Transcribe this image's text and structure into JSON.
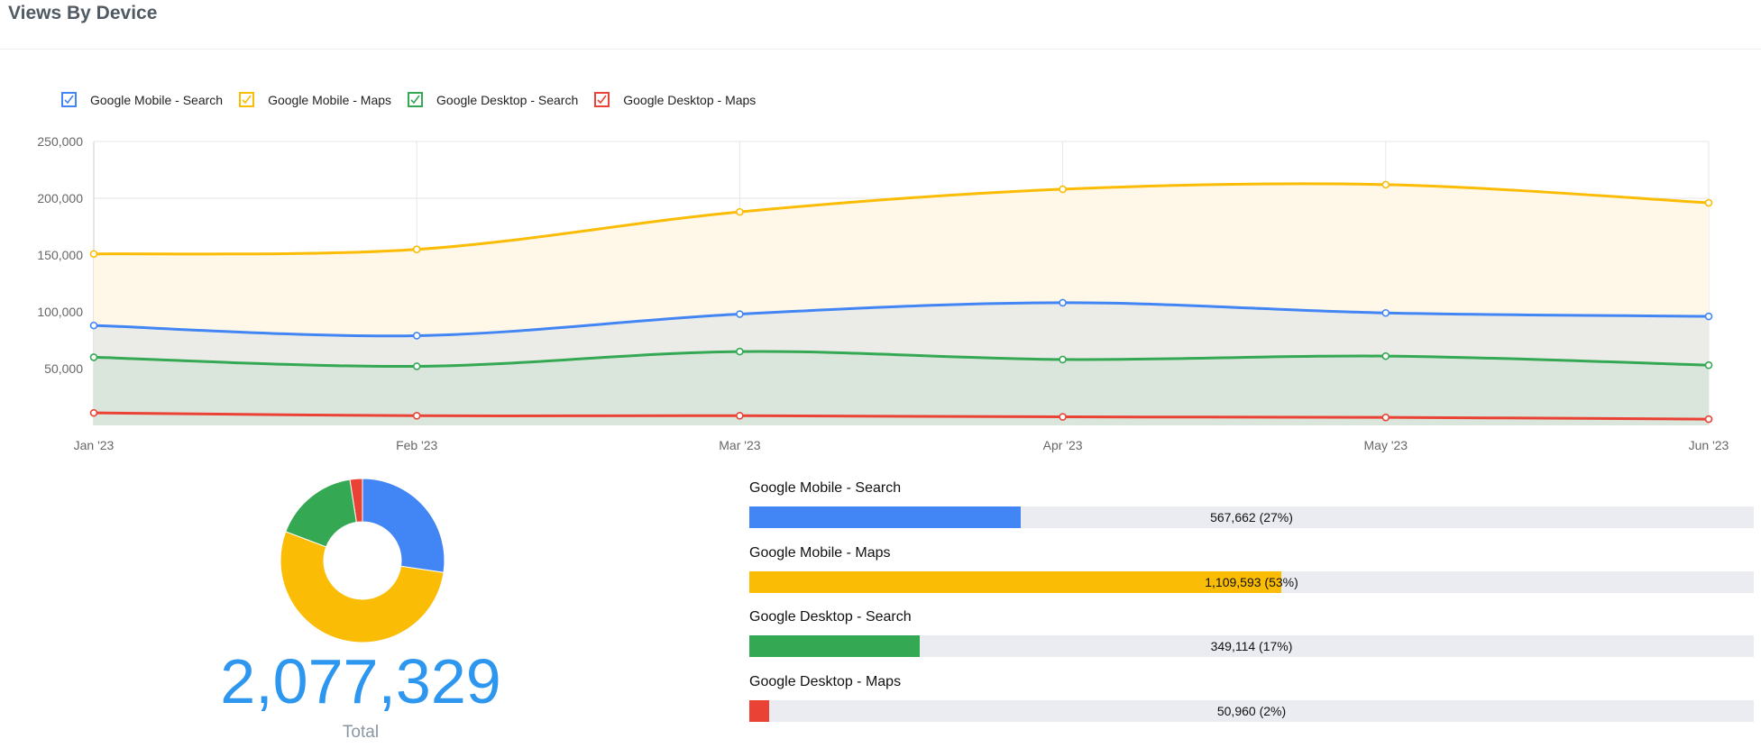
{
  "header": {
    "title": "Views By Device"
  },
  "legend": [
    {
      "label": "Google Mobile - Search",
      "color": "#4285f4"
    },
    {
      "label": "Google Mobile - Maps",
      "color": "#fbbc05"
    },
    {
      "label": "Google Desktop - Search",
      "color": "#34a853"
    },
    {
      "label": "Google Desktop - Maps",
      "color": "#ea4335"
    }
  ],
  "chart_data": [
    {
      "type": "area",
      "x": [
        "Jan '23",
        "Feb '23",
        "Mar '23",
        "Apr '23",
        "May '23",
        "Jun '23"
      ],
      "ylim": [
        0,
        250000
      ],
      "yticks": [
        "250,000",
        "200,000",
        "150,000",
        "100,000",
        "50,000"
      ],
      "yticks_values": [
        250000,
        200000,
        150000,
        100000,
        50000
      ],
      "grid": true,
      "legend_position": "top-left",
      "series": [
        {
          "name": "Google Mobile - Maps",
          "color": "#fbbc05",
          "fill": "#fff7e8",
          "values": [
            151000,
            155000,
            188000,
            208000,
            212000,
            196000
          ]
        },
        {
          "name": "Google Mobile - Search",
          "color": "#4285f4",
          "fill": "#ebece8",
          "values": [
            88000,
            79000,
            98000,
            108000,
            99000,
            96000
          ]
        },
        {
          "name": "Google Desktop - Search",
          "color": "#34a853",
          "fill": "#dae6dc",
          "values": [
            60000,
            52000,
            65000,
            58000,
            61000,
            53000
          ]
        },
        {
          "name": "Google Desktop - Maps",
          "color": "#ea4335",
          "fill": "#dae6dc",
          "values": [
            11000,
            8500,
            8500,
            7500,
            7000,
            5500
          ]
        }
      ]
    },
    {
      "type": "pie",
      "categories": [
        "Google Mobile - Search",
        "Google Mobile - Maps",
        "Google Desktop - Search",
        "Google Desktop - Maps"
      ],
      "values": [
        567662,
        1109593,
        349114,
        50960
      ],
      "colors": [
        "#4285f4",
        "#fbbc05",
        "#34a853",
        "#ea4335"
      ]
    }
  ],
  "summary": {
    "total": "2,077,329",
    "total_label": "Total",
    "bars": [
      {
        "name": "Google Mobile - Search",
        "value_text": "567,662 (27%)",
        "fraction": 0.27,
        "color": "#4285f4"
      },
      {
        "name": "Google Mobile - Maps",
        "value_text": "1,109,593 (53%)",
        "fraction": 0.53,
        "color": "#fbbc05"
      },
      {
        "name": "Google Desktop - Search",
        "value_text": "349,114 (17%)",
        "fraction": 0.17,
        "color": "#34a853"
      },
      {
        "name": "Google Desktop - Maps",
        "value_text": "50,960 (2%)",
        "fraction": 0.02,
        "color": "#ea4335"
      }
    ]
  }
}
